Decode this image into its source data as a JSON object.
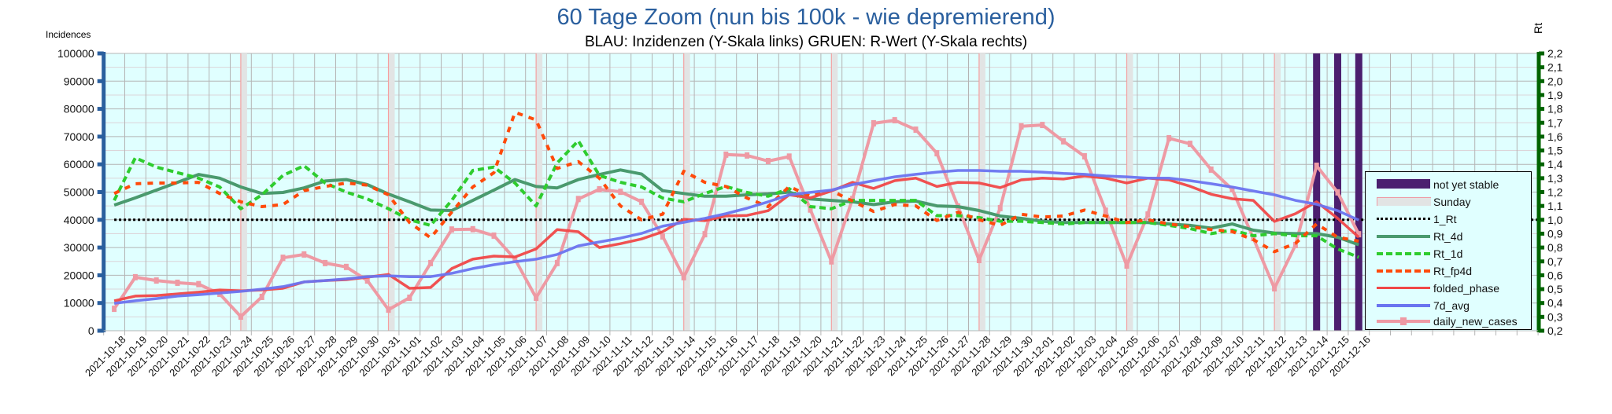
{
  "chart_data": {
    "type": "line",
    "title": "60 Tage Zoom  (nun bis 100k - wie depremierend)",
    "subtitle": "BLAU: Inzidenzen (Y-Skala links)     GRUEN: R-Wert (Y-Skala rechts)",
    "ylabel": "Incidences",
    "y2label": "Rt",
    "ylim": [
      0,
      100000
    ],
    "y2lim": [
      0.2,
      2.2
    ],
    "yticks": [
      "0",
      "10000",
      "20000",
      "30000",
      "40000",
      "50000",
      "60000",
      "70000",
      "80000",
      "90000",
      "100000"
    ],
    "y2ticks": [
      "0,2",
      "0,3",
      "0,4",
      "0,5",
      "0,6",
      "0,7",
      "0,8",
      "0,9",
      "1,0",
      "1,1",
      "1,2",
      "1,3",
      "1,4",
      "1,5",
      "1,6",
      "1,7",
      "1,8",
      "1,9",
      "2,0",
      "2,1",
      "2,2"
    ],
    "grid": true,
    "legend_position": "right",
    "categories": [
      "2021-10-18",
      "2021-10-19",
      "2021-10-20",
      "2021-10-21",
      "2021-10-22",
      "2021-10-23",
      "2021-10-24",
      "2021-10-25",
      "2021-10-26",
      "2021-10-27",
      "2021-10-28",
      "2021-10-29",
      "2021-10-30",
      "2021-10-31",
      "2021-11-01",
      "2021-11-02",
      "2021-11-03",
      "2021-11-04",
      "2021-11-05",
      "2021-11-06",
      "2021-11-07",
      "2021-11-08",
      "2021-11-09",
      "2021-11-10",
      "2021-11-11",
      "2021-11-12",
      "2021-11-13",
      "2021-11-14",
      "2021-11-15",
      "2021-11-16",
      "2021-11-17",
      "2021-11-18",
      "2021-11-19",
      "2021-11-20",
      "2021-11-21",
      "2021-11-22",
      "2021-11-23",
      "2021-11-24",
      "2021-11-25",
      "2021-11-26",
      "2021-11-27",
      "2021-11-28",
      "2021-11-29",
      "2021-11-30",
      "2021-12-01",
      "2021-12-02",
      "2021-12-03",
      "2021-12-04",
      "2021-12-05",
      "2021-12-06",
      "2021-12-07",
      "2021-12-08",
      "2021-12-09",
      "2021-12-10",
      "2021-12-11",
      "2021-12-12",
      "2021-12-13",
      "2021-12-14",
      "2021-12-15",
      "2021-12-16"
    ],
    "sundays": [
      "2021-10-24",
      "2021-10-31",
      "2021-11-07",
      "2021-11-14",
      "2021-11-21",
      "2021-11-28",
      "2021-12-05",
      "2021-12-12"
    ],
    "not_yet_stable": [
      "2021-12-14",
      "2021-12-15",
      "2021-12-16"
    ],
    "one_rt": 1.0,
    "series": [
      {
        "name": "Rt_4d",
        "axis": "right",
        "color": "#4a9a6e",
        "style": "solid",
        "values": [
          1.106,
          1.158,
          1.214,
          1.27,
          1.327,
          1.3,
          1.237,
          1.19,
          1.197,
          1.23,
          1.28,
          1.29,
          1.254,
          1.186,
          1.13,
          1.07,
          1.067,
          1.14,
          1.214,
          1.29,
          1.24,
          1.23,
          1.29,
          1.327,
          1.36,
          1.33,
          1.21,
          1.19,
          1.17,
          1.17,
          1.18,
          1.186,
          1.2,
          1.15,
          1.14,
          1.13,
          1.11,
          1.13,
          1.135,
          1.1,
          1.095,
          1.067,
          1.027,
          1.01,
          0.99,
          0.98,
          0.98,
          0.98,
          0.98,
          0.98,
          0.97,
          0.96,
          0.94,
          0.97,
          0.925,
          0.905,
          0.9,
          0.9,
          0.874,
          0.82
        ]
      },
      {
        "name": "Rt_1d",
        "axis": "right",
        "color": "#2ecc2e",
        "style": "dash",
        "values": [
          1.14,
          1.447,
          1.38,
          1.34,
          1.3,
          1.237,
          1.08,
          1.18,
          1.32,
          1.39,
          1.265,
          1.2,
          1.15,
          1.08,
          1.0,
          0.96,
          1.14,
          1.356,
          1.38,
          1.265,
          1.1,
          1.41,
          1.57,
          1.32,
          1.27,
          1.237,
          1.157,
          1.13,
          1.19,
          1.24,
          1.197,
          1.17,
          1.225,
          1.095,
          1.08,
          1.14,
          1.14,
          1.14,
          1.14,
          1.03,
          1.03,
          1.016,
          0.99,
          0.99,
          0.98,
          0.97,
          0.98,
          0.98,
          0.98,
          0.98,
          0.96,
          0.937,
          0.9,
          0.925,
          0.885,
          0.9,
          0.885,
          0.885,
          0.79,
          0.73
        ]
      },
      {
        "name": "Rt_fp4d",
        "axis": "right",
        "color": "#ff4a0a",
        "style": "dash2",
        "values": [
          1.19,
          1.26,
          1.265,
          1.265,
          1.27,
          1.19,
          1.13,
          1.095,
          1.11,
          1.21,
          1.24,
          1.265,
          1.25,
          1.18,
          0.98,
          0.87,
          1.055,
          1.237,
          1.34,
          1.775,
          1.72,
          1.37,
          1.42,
          1.3,
          1.1,
          1.0,
          1.04,
          1.35,
          1.27,
          1.24,
          1.157,
          1.095,
          1.24,
          1.17,
          1.21,
          1.135,
          1.06,
          1.11,
          1.1,
          0.995,
          1.055,
          1.0,
          0.96,
          1.04,
          1.02,
          1.027,
          1.07,
          1.027,
          0.98,
          1.0,
          0.97,
          0.95,
          0.93,
          0.915,
          0.857,
          0.77,
          0.83,
          0.97,
          0.874,
          0.846
        ]
      },
      {
        "name": "folded_phase",
        "axis": "left",
        "color": "#f04848",
        "style": "solid",
        "values": [
          10800,
          12500,
          12700,
          13300,
          13900,
          14700,
          14400,
          14700,
          15300,
          17600,
          18100,
          18400,
          19300,
          20300,
          15300,
          15600,
          22400,
          25800,
          26900,
          26600,
          29500,
          36500,
          35700,
          30000,
          31400,
          33100,
          35700,
          40200,
          39700,
          41400,
          41600,
          43300,
          49000,
          47900,
          50400,
          53500,
          51300,
          54100,
          55000,
          52000,
          53500,
          53300,
          51600,
          54400,
          55000,
          54700,
          55800,
          55000,
          53300,
          55000,
          54400,
          52100,
          49200,
          47600,
          47000,
          39400,
          42200,
          46500,
          40500,
          33700
        ]
      },
      {
        "name": "7d_avg",
        "axis": "left",
        "color": "#6a74f0",
        "style": "solid",
        "values": [
          9900,
          10800,
          11600,
          12500,
          13000,
          13600,
          14200,
          15000,
          15900,
          17600,
          18100,
          18700,
          19500,
          19800,
          19500,
          19500,
          20700,
          22400,
          23800,
          24900,
          25800,
          27500,
          30600,
          32000,
          33400,
          35100,
          37700,
          39100,
          40500,
          42200,
          44200,
          46500,
          49000,
          49900,
          50700,
          52700,
          54100,
          55500,
          56400,
          57200,
          57800,
          57800,
          57500,
          57500,
          57200,
          56700,
          56400,
          55800,
          55500,
          55000,
          55000,
          54100,
          53000,
          51800,
          50400,
          49000,
          47000,
          45600,
          43300,
          39900
        ]
      },
      {
        "name": "daily_new_cases",
        "axis": "left",
        "color": "#ee9aa4",
        "style": "marker",
        "values": [
          7900,
          19300,
          18100,
          17300,
          16800,
          13300,
          5100,
          12200,
          26300,
          27500,
          24400,
          23000,
          18100,
          7600,
          11900,
          24400,
          36500,
          36600,
          34300,
          25800,
          11900,
          24400,
          47500,
          51000,
          50100,
          46500,
          34000,
          19300,
          34800,
          63500,
          63200,
          61200,
          62800,
          43700,
          25000,
          47500,
          74800,
          75900,
          72500,
          64000,
          44800,
          25500,
          44200,
          73700,
          74200,
          68300,
          62900,
          43300,
          23500,
          41900,
          69400,
          67400,
          58100,
          51000,
          33400,
          15300,
          30900,
          59500,
          49900,
          34800
        ]
      }
    ],
    "legend": [
      "not yet stable",
      "Sunday",
      "1_Rt",
      "Rt_4d",
      "Rt_1d",
      "Rt_fp4d",
      "folded_phase",
      "7d_avg",
      "daily_new_cases"
    ]
  },
  "colors": {
    "background": "#e0ffff",
    "left_axis": "#2a5f9e",
    "right_axis": "#006400",
    "not_yet_stable": "#4b1f6f",
    "sunday": "#e2e4e4"
  }
}
